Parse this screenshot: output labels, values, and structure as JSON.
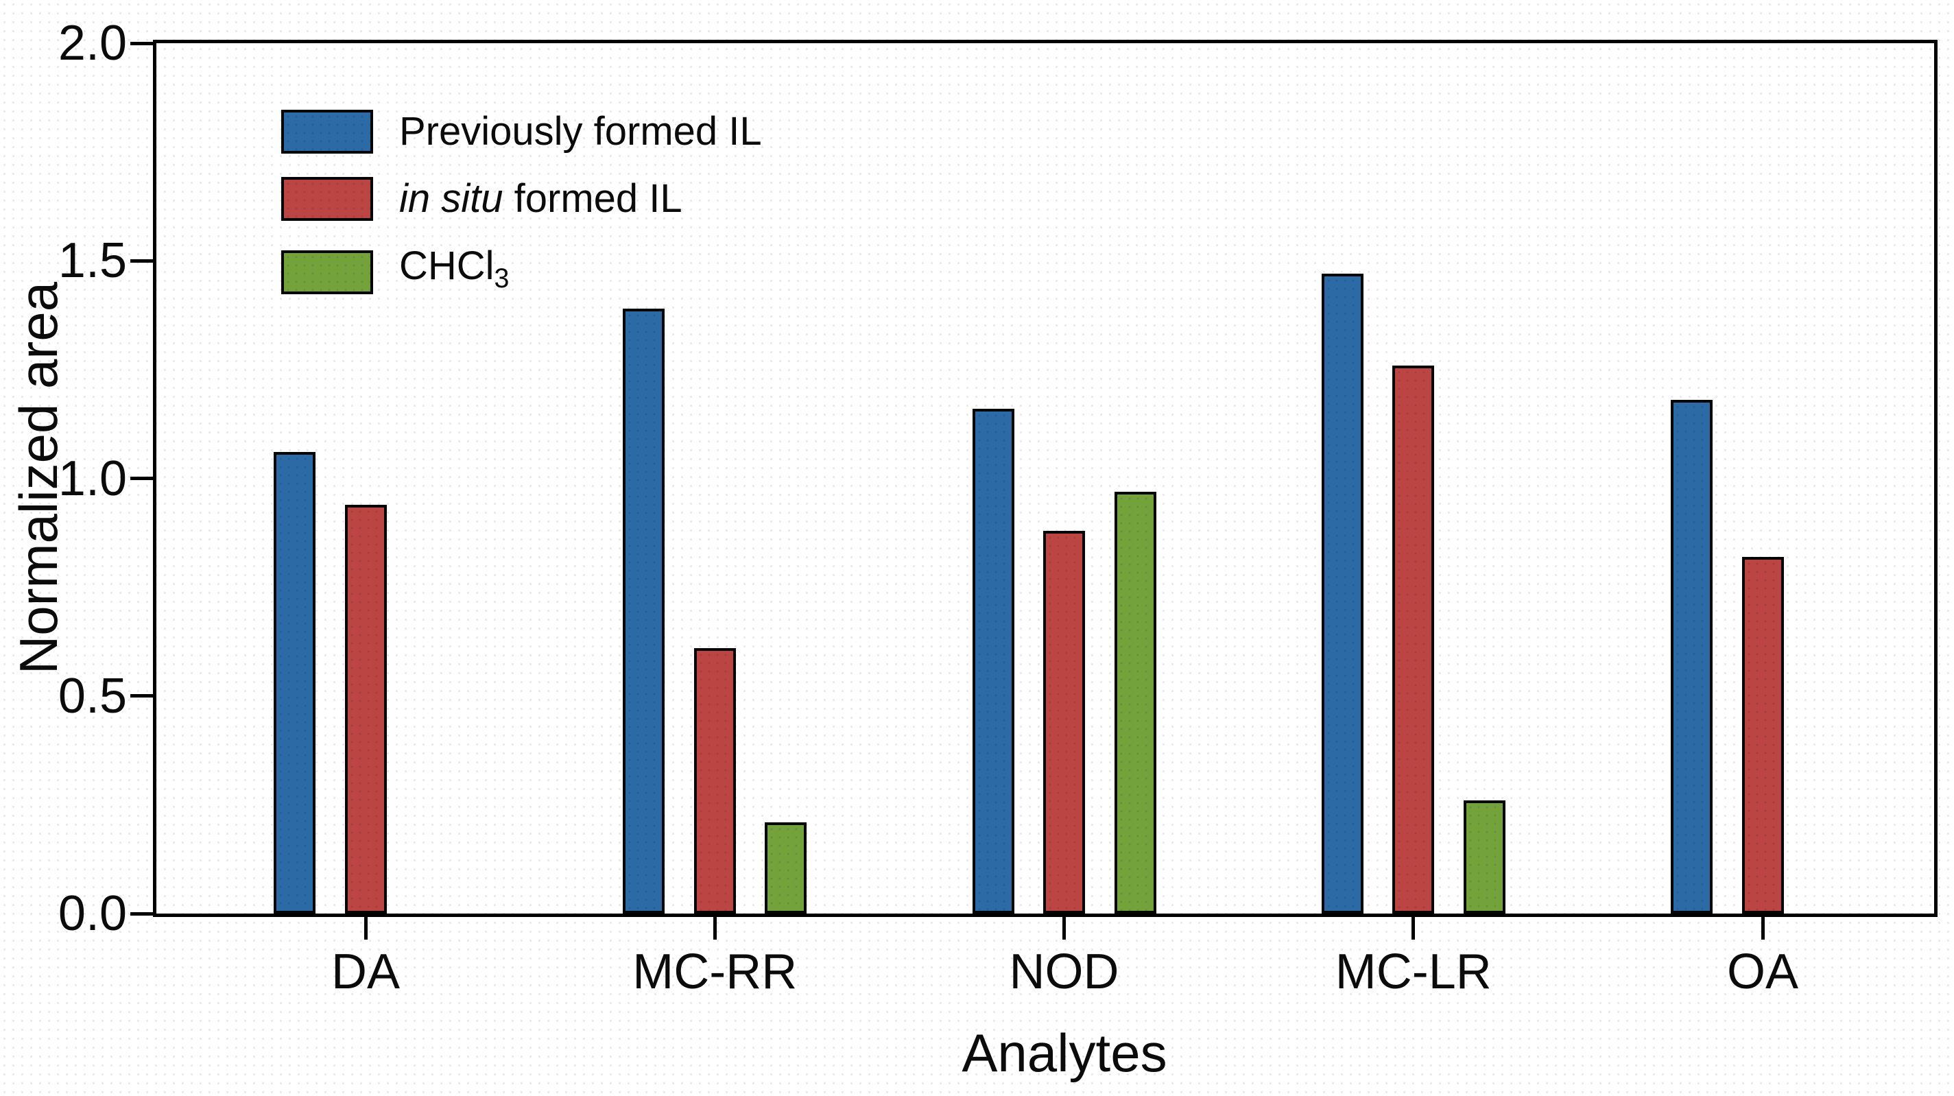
{
  "chart_data": {
    "type": "bar",
    "title": "",
    "xlabel": "Analytes",
    "ylabel": "Normalized area",
    "categories": [
      "DA",
      "MC-RR",
      "NOD",
      "MC-LR",
      "OA"
    ],
    "series": [
      {
        "name": "Previously formed IL",
        "color": "#2b6aa5",
        "values": [
          1.06,
          1.39,
          1.16,
          1.47,
          1.18
        ]
      },
      {
        "name": "in situ formed IL",
        "color": "#bb4542",
        "values": [
          0.94,
          0.61,
          0.88,
          1.26,
          0.82
        ]
      },
      {
        "name": "CHCl3",
        "color": "#73a23b",
        "values": [
          null,
          0.21,
          0.97,
          0.26,
          null
        ]
      }
    ],
    "ylim": [
      0,
      2
    ],
    "yticks": [
      0,
      0.5,
      1,
      1.5,
      2
    ],
    "ytick_labels": [
      "0.0",
      "0.5",
      "1.0",
      "1.5",
      "2.0"
    ],
    "grid": false,
    "legend_position": "upper-left",
    "bar_outline_color": "#050505",
    "frame_color": "#000000"
  },
  "legend": {
    "entries": [
      {
        "color": "#2b6aa5",
        "parts": [
          {
            "t": "Previously formed IL"
          }
        ]
      },
      {
        "color": "#bb4542",
        "parts": [
          {
            "t": "in situ",
            "style": "italic"
          },
          {
            "t": " formed IL"
          }
        ]
      },
      {
        "color": "#73a23b",
        "parts": [
          {
            "t": "CHCl"
          },
          {
            "t": "3",
            "style": "sub"
          }
        ]
      }
    ]
  }
}
